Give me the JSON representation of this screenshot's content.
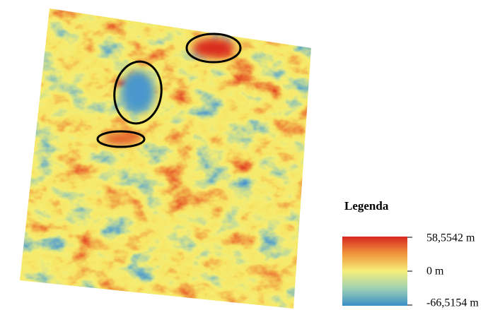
{
  "legend": {
    "title": "Legenda",
    "labels": [
      "58,5542 m",
      "0 m",
      "-66,5154 m"
    ]
  }
}
